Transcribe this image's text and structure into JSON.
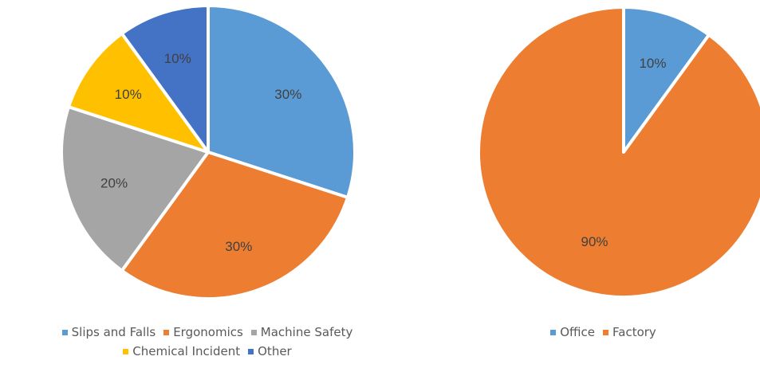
{
  "chart_data": [
    {
      "type": "pie",
      "title": "",
      "categories": [
        "Slips and Falls",
        "Ergonomics",
        "Machine Safety",
        "Chemical Incident",
        "Other"
      ],
      "values": [
        30,
        30,
        20,
        10,
        10
      ],
      "labels": [
        "30%",
        "30%",
        "20%",
        "10%",
        "10%"
      ],
      "colors": [
        "#5B9BD5",
        "#ED7D31",
        "#A5A5A5",
        "#FFC000",
        "#4472C4"
      ],
      "legend": "bottom",
      "start_angle": "12 o'clock",
      "direction": "clockwise"
    },
    {
      "type": "pie",
      "title": "",
      "categories": [
        "Office",
        "Factory"
      ],
      "values": [
        10,
        90
      ],
      "labels": [
        "10%",
        "90%"
      ],
      "colors": [
        "#5B9BD5",
        "#ED7D31"
      ],
      "legend": "bottom",
      "start_angle": "12 o'clock",
      "direction": "clockwise"
    }
  ]
}
